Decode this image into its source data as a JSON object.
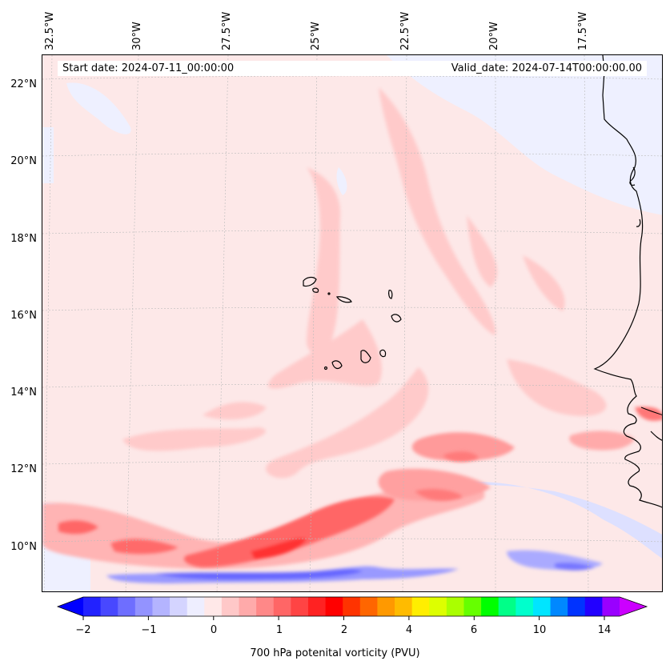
{
  "map": {
    "start_date": "Start date: 2024-07-11_00:00:00",
    "valid_date": "Valid_date: 2024-07-14T00:00:00.00",
    "longitude_labels": [
      "32.5°W",
      "30°W",
      "27.5°W",
      "25°W",
      "22.5°W",
      "20°W",
      "17.5°W"
    ],
    "latitude_labels": [
      "22°N",
      "20°N",
      "18°N",
      "16°N",
      "14°N",
      "12°N",
      "10°N"
    ],
    "extent": {
      "lon_min": -33.0,
      "lon_max": -15.5,
      "lat_min": 8.8,
      "lat_max": 22.8
    },
    "gridlines": true,
    "coastlines": true
  },
  "colorbar": {
    "label": "700 hPa potenital vorticity (PVU)",
    "tick_labels": [
      "−2",
      "−1",
      "0",
      "1",
      "2",
      "4",
      "6",
      "10",
      "14"
    ],
    "extend": "both",
    "colors": [
      "#0000ff",
      "#2222ff",
      "#4848ff",
      "#6e6eff",
      "#9393ff",
      "#b4b4ff",
      "#d4d4ff",
      "#eeeeff",
      "#ffe8e8",
      "#ffc8c8",
      "#ffaaaa",
      "#ff8888",
      "#ff6666",
      "#ff4444",
      "#ff2222",
      "#ff0000",
      "#ff3300",
      "#ff6600",
      "#ff9900",
      "#ffbb00",
      "#ffee00",
      "#ddff00",
      "#aaff00",
      "#66ff00",
      "#00ff00",
      "#00ff88",
      "#00ffcc",
      "#00e5ff",
      "#0088ff",
      "#0033ff",
      "#2200ff",
      "#9900ff",
      "#cc00ff"
    ]
  }
}
